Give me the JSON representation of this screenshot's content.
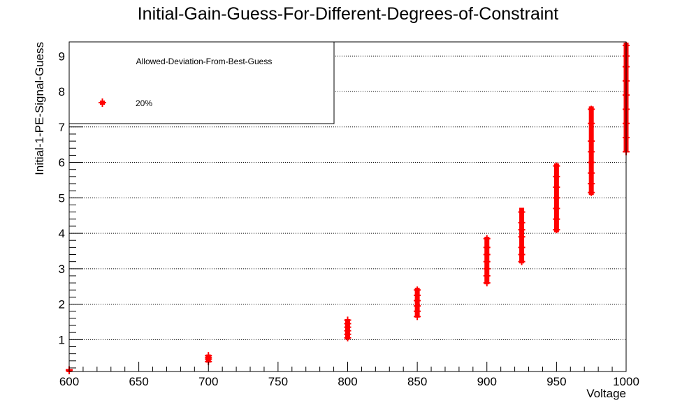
{
  "colors": {
    "marker": "#ff0000",
    "frame": "#000000",
    "grid": "#000000",
    "background": "#ffffff"
  },
  "chart_data": {
    "type": "scatter",
    "title": "Initial-Gain-Guess-For-Different-Degrees-of-Constraint",
    "xlabel": "Voltage",
    "ylabel": "Initial-1-PE-Signal-Guess",
    "xlim": [
      600,
      1000
    ],
    "ylim": [
      0.1,
      9.4
    ],
    "xticks": [
      600,
      650,
      700,
      750,
      800,
      850,
      900,
      950,
      1000
    ],
    "yticks": [
      1,
      2,
      3,
      4,
      5,
      6,
      7,
      8,
      9
    ],
    "grid": "horizontal dotted",
    "legend": {
      "title": "Allowed-Deviation-From-Best-Guess",
      "placement": "top-left"
    },
    "series": [
      {
        "name": "20%",
        "points": [
          {
            "x": 600,
            "y": 0.12
          },
          {
            "x": 600,
            "y": 0.15
          },
          {
            "x": 700,
            "y": 0.38
          },
          {
            "x": 700,
            "y": 0.45
          },
          {
            "x": 700,
            "y": 0.5
          },
          {
            "x": 700,
            "y": 0.55
          },
          {
            "x": 800,
            "y": 1.05
          },
          {
            "x": 800,
            "y": 1.15
          },
          {
            "x": 800,
            "y": 1.25
          },
          {
            "x": 800,
            "y": 1.35
          },
          {
            "x": 800,
            "y": 1.45
          },
          {
            "x": 800,
            "y": 1.55
          },
          {
            "x": 850,
            "y": 1.65
          },
          {
            "x": 850,
            "y": 1.8
          },
          {
            "x": 850,
            "y": 1.95
          },
          {
            "x": 850,
            "y": 2.1
          },
          {
            "x": 850,
            "y": 2.25
          },
          {
            "x": 850,
            "y": 2.4
          },
          {
            "x": 900,
            "y": 2.6
          },
          {
            "x": 900,
            "y": 2.8
          },
          {
            "x": 900,
            "y": 3.0
          },
          {
            "x": 900,
            "y": 3.2
          },
          {
            "x": 900,
            "y": 3.4
          },
          {
            "x": 900,
            "y": 3.6
          },
          {
            "x": 900,
            "y": 3.85
          },
          {
            "x": 925,
            "y": 3.2
          },
          {
            "x": 925,
            "y": 3.4
          },
          {
            "x": 925,
            "y": 3.6
          },
          {
            "x": 925,
            "y": 3.9
          },
          {
            "x": 925,
            "y": 4.1
          },
          {
            "x": 925,
            "y": 4.3
          },
          {
            "x": 925,
            "y": 4.6
          },
          {
            "x": 950,
            "y": 4.1
          },
          {
            "x": 950,
            "y": 4.4
          },
          {
            "x": 950,
            "y": 4.7
          },
          {
            "x": 950,
            "y": 5.0
          },
          {
            "x": 950,
            "y": 5.3
          },
          {
            "x": 950,
            "y": 5.6
          },
          {
            "x": 950,
            "y": 5.9
          },
          {
            "x": 975,
            "y": 5.15
          },
          {
            "x": 975,
            "y": 5.4
          },
          {
            "x": 975,
            "y": 5.7
          },
          {
            "x": 975,
            "y": 6.0
          },
          {
            "x": 975,
            "y": 6.3
          },
          {
            "x": 975,
            "y": 6.6
          },
          {
            "x": 975,
            "y": 7.1
          },
          {
            "x": 975,
            "y": 7.5
          },
          {
            "x": 1000,
            "y": 6.3
          },
          {
            "x": 1000,
            "y": 6.7
          },
          {
            "x": 1000,
            "y": 7.1
          },
          {
            "x": 1000,
            "y": 7.5
          },
          {
            "x": 1000,
            "y": 7.9
          },
          {
            "x": 1000,
            "y": 8.3
          },
          {
            "x": 1000,
            "y": 8.7
          },
          {
            "x": 1000,
            "y": 9.0
          },
          {
            "x": 1000,
            "y": 9.3
          }
        ],
        "ranges": [
          {
            "x": 600,
            "ymin": 0.1,
            "ymax": 0.16
          },
          {
            "x": 700,
            "ymin": 0.35,
            "ymax": 0.58
          },
          {
            "x": 800,
            "ymin": 1.0,
            "ymax": 1.58
          },
          {
            "x": 850,
            "ymin": 1.62,
            "ymax": 2.46
          },
          {
            "x": 900,
            "ymin": 2.56,
            "ymax": 3.9
          },
          {
            "x": 925,
            "ymin": 3.15,
            "ymax": 4.72
          },
          {
            "x": 950,
            "ymin": 4.03,
            "ymax": 5.97
          },
          {
            "x": 975,
            "ymin": 5.08,
            "ymax": 7.58
          },
          {
            "x": 1000,
            "ymin": 6.28,
            "ymax": 9.38
          }
        ]
      }
    ]
  }
}
